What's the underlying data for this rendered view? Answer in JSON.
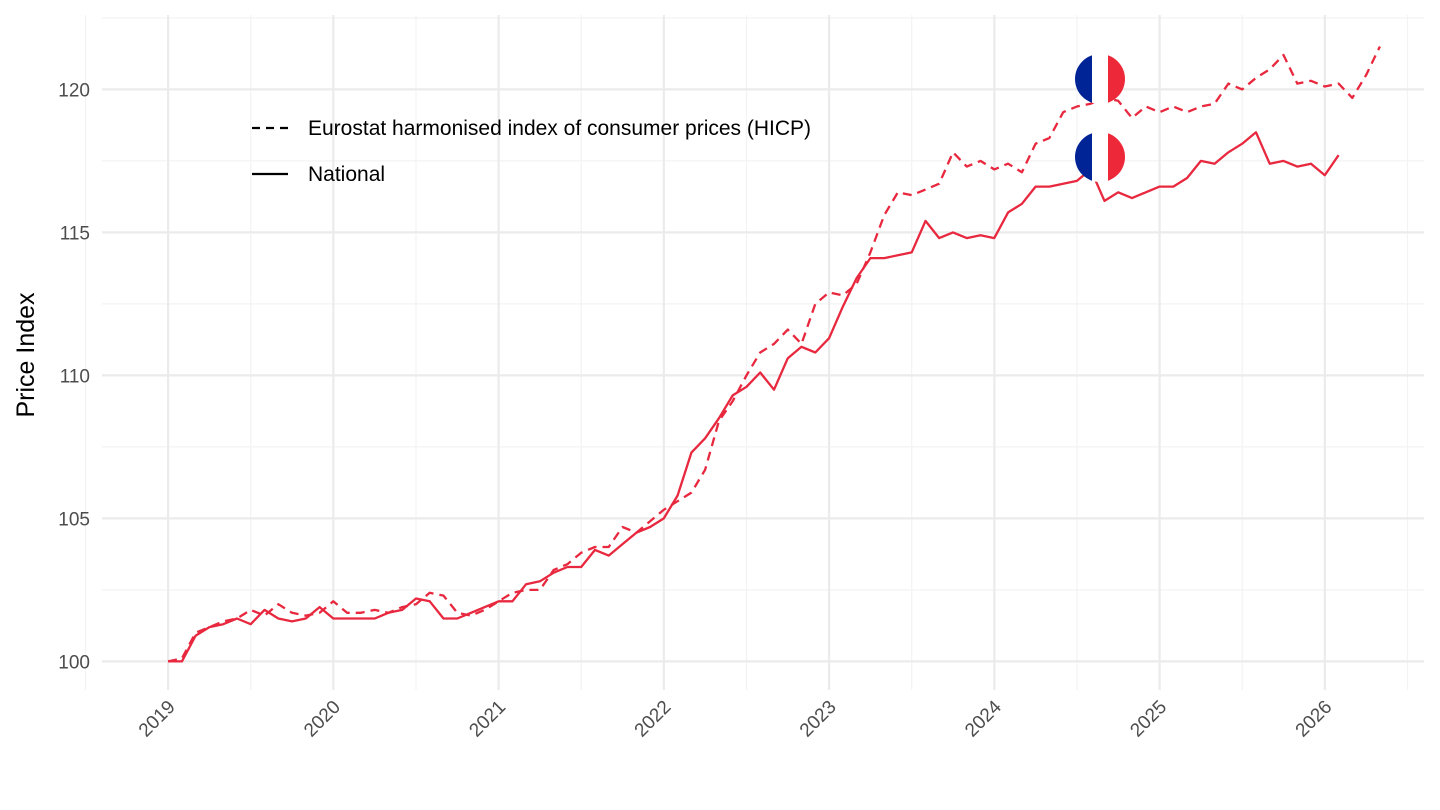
{
  "colors": {
    "series": "#e8283e",
    "grid_major": "#ebebeb",
    "grid_minor": "#f3f3f3",
    "flag_blue": "#002395",
    "flag_white": "#ffffff",
    "flag_red": "#ed2939"
  },
  "chart_data": {
    "type": "line",
    "title": "",
    "xlabel": "",
    "ylabel": "Price Index",
    "xlim": [
      2018.6,
      2026.6
    ],
    "ylim": [
      99.0,
      122.6
    ],
    "x_ticks": [
      2019,
      2020,
      2021,
      2022,
      2023,
      2024,
      2025,
      2026
    ],
    "x_tick_labels": [
      "2019",
      "2020",
      "2021",
      "2022",
      "2023",
      "2024",
      "2025",
      "2026"
    ],
    "y_ticks": [
      100,
      105,
      110,
      115,
      120
    ],
    "y_tick_labels": [
      "100",
      "105",
      "110",
      "115",
      "120"
    ],
    "legend": {
      "position": "top-left"
    },
    "annotations": [
      {
        "type": "flag",
        "country": "France",
        "series": "HICP"
      },
      {
        "type": "flag",
        "country": "France",
        "series": "National"
      }
    ],
    "series": [
      {
        "name": "Eurostat harmonised index of consumer prices (HICP)",
        "linetype": "dashed",
        "start": 2019.0,
        "step": 0.08333,
        "values": [
          100.0,
          100.1,
          101.0,
          101.2,
          101.4,
          101.5,
          101.8,
          101.6,
          102.0,
          101.7,
          101.6,
          101.7,
          102.1,
          101.7,
          101.7,
          101.8,
          101.7,
          101.9,
          102.0,
          102.4,
          102.3,
          101.7,
          101.6,
          101.8,
          102.1,
          102.4,
          102.5,
          102.5,
          103.2,
          103.4,
          103.8,
          104.0,
          104.0,
          104.7,
          104.5,
          104.9,
          105.3,
          105.6,
          105.9,
          106.7,
          108.4,
          109.1,
          110.0,
          110.8,
          111.1,
          111.6,
          111.1,
          112.5,
          112.9,
          112.8,
          113.2,
          114.3,
          115.6,
          116.4,
          116.3,
          116.5,
          116.7,
          117.8,
          117.3,
          117.5,
          117.2,
          117.4,
          117.1,
          118.1,
          118.3,
          119.2,
          119.4,
          119.5,
          119.7,
          119.6,
          119.0,
          119.4,
          119.2,
          119.4,
          119.2,
          119.4,
          119.5,
          120.2,
          120.0,
          120.4,
          120.7,
          121.2,
          120.2,
          120.3,
          120.1,
          120.2,
          119.7,
          120.5,
          121.5
        ]
      },
      {
        "name": "National",
        "linetype": "solid",
        "start": 2019.0,
        "step": 0.08333,
        "values": [
          100.0,
          100.0,
          100.9,
          101.2,
          101.3,
          101.5,
          101.3,
          101.8,
          101.5,
          101.4,
          101.5,
          101.9,
          101.5,
          101.5,
          101.5,
          101.5,
          101.7,
          101.8,
          102.2,
          102.1,
          101.5,
          101.5,
          101.7,
          101.9,
          102.1,
          102.1,
          102.7,
          102.8,
          103.1,
          103.3,
          103.3,
          103.9,
          103.7,
          104.1,
          104.5,
          104.7,
          105.0,
          105.8,
          107.3,
          107.8,
          108.5,
          109.3,
          109.6,
          110.1,
          109.5,
          110.6,
          111.0,
          110.8,
          111.3,
          112.4,
          113.4,
          114.1,
          114.1,
          114.2,
          114.3,
          115.4,
          114.8,
          115.0,
          114.8,
          114.9,
          114.8,
          115.7,
          116.0,
          116.6,
          116.6,
          116.7,
          116.8,
          117.2,
          116.1,
          116.4,
          116.2,
          116.4,
          116.6,
          116.6,
          116.9,
          117.5,
          117.4,
          117.8,
          118.1,
          118.5,
          117.4,
          117.5,
          117.3,
          117.4,
          117.0,
          117.7
        ]
      }
    ]
  }
}
